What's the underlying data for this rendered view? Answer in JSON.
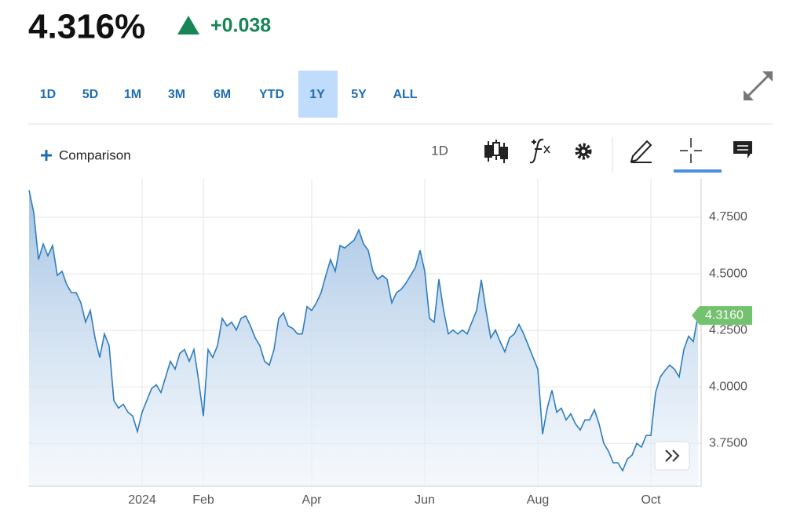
{
  "header": {
    "price": "4.316%",
    "change": "+0.038"
  },
  "tabs": [
    "1D",
    "5D",
    "1M",
    "3M",
    "6M",
    "YTD",
    "1Y",
    "5Y",
    "ALL"
  ],
  "selected_tab": 6,
  "toolbar": {
    "comparison": "Comparison",
    "interval": "1D"
  },
  "chart_data": {
    "type": "line",
    "categories": [
      null,
      null,
      null,
      null,
      null,
      null,
      null,
      null,
      null,
      null,
      null,
      null,
      null,
      null,
      null,
      null,
      null,
      null,
      null,
      null,
      null,
      null,
      null,
      null,
      "2024",
      null,
      null,
      null,
      null,
      null,
      null,
      null,
      null,
      null,
      null,
      null,
      null,
      "Feb",
      null,
      null,
      null,
      null,
      null,
      null,
      null,
      null,
      null,
      null,
      null,
      null,
      null,
      null,
      null,
      null,
      null,
      null,
      null,
      null,
      null,
      null,
      "Apr",
      null,
      null,
      null,
      null,
      null,
      null,
      null,
      null,
      null,
      null,
      null,
      null,
      null,
      null,
      null,
      null,
      null,
      null,
      null,
      null,
      null,
      null,
      null,
      "Jun",
      null,
      null,
      null,
      null,
      null,
      null,
      null,
      null,
      null,
      null,
      null,
      null,
      null,
      null,
      null,
      null,
      null,
      null,
      null,
      null,
      null,
      null,
      null,
      "Aug",
      null,
      null,
      null,
      null,
      null,
      null,
      null,
      null,
      null,
      null,
      null,
      null,
      null,
      null,
      null,
      null,
      null,
      null,
      null,
      null,
      null,
      null,
      null,
      "Oct",
      null,
      null,
      null,
      null,
      null,
      null,
      null,
      null,
      null,
      null
    ],
    "values": [
      4.87,
      4.77,
      4.563,
      4.632,
      4.58,
      4.625,
      4.493,
      4.511,
      4.452,
      4.417,
      4.417,
      4.372,
      4.286,
      4.338,
      4.217,
      4.13,
      4.234,
      4.182,
      3.94,
      3.906,
      3.923,
      3.888,
      3.871,
      3.802,
      3.888,
      3.94,
      3.992,
      4.009,
      3.975,
      4.044,
      4.113,
      4.078,
      4.148,
      4.165,
      4.113,
      4.165,
      4.027,
      3.871,
      4.165,
      4.13,
      4.182,
      4.303,
      4.269,
      4.286,
      4.251,
      4.303,
      4.314,
      4.269,
      4.217,
      4.182,
      4.113,
      4.096,
      4.165,
      4.303,
      4.327,
      4.269,
      4.258,
      4.234,
      4.234,
      4.355,
      4.338,
      4.372,
      4.417,
      4.493,
      4.563,
      4.511,
      4.625,
      4.614,
      4.632,
      4.649,
      4.694,
      4.632,
      4.604,
      4.511,
      4.476,
      4.493,
      4.476,
      4.372,
      4.417,
      4.431,
      4.459,
      4.493,
      4.528,
      4.604,
      4.511,
      4.303,
      4.286,
      4.476,
      4.338,
      4.234,
      4.251,
      4.234,
      4.251,
      4.234,
      4.286,
      4.338,
      4.473,
      4.338,
      4.217,
      4.251,
      4.2,
      4.155,
      4.217,
      4.234,
      4.276,
      4.234,
      4.182,
      4.13,
      4.078,
      3.791,
      3.906,
      3.985,
      3.888,
      3.906,
      3.854,
      3.881,
      3.836,
      3.809,
      3.854,
      3.854,
      3.899,
      3.836,
      3.75,
      3.715,
      3.664,
      3.664,
      3.629,
      3.681,
      3.698,
      3.75,
      3.733,
      3.785,
      3.785,
      3.975,
      4.044,
      4.072,
      4.096,
      4.078,
      4.044,
      4.165,
      4.224,
      4.2,
      4.316
    ],
    "color": "#2f7dbd",
    "last_label": "4.3160",
    "ylim": [
      3.56,
      4.92
    ],
    "yticks": [
      {
        "value": 3.75,
        "label": "3.7500"
      },
      {
        "value": 4.0,
        "label": "4.0000"
      },
      {
        "value": 4.25,
        "label": "4.2500"
      },
      {
        "value": 4.5,
        "label": "4.5000"
      },
      {
        "value": 4.75,
        "label": "4.7500"
      }
    ],
    "grid": true
  }
}
